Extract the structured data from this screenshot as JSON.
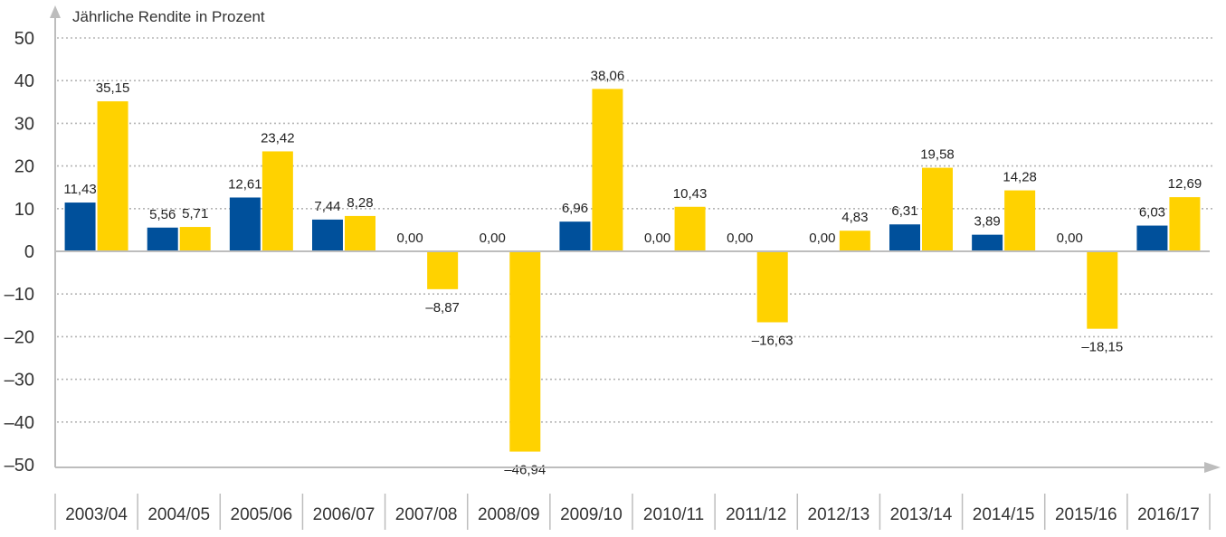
{
  "chart_data": {
    "type": "bar",
    "ylabel": "Jährliche Rendite in Prozent",
    "ylim": [
      -50,
      50
    ],
    "yticks": [
      "50",
      "40",
      "30",
      "20",
      "10",
      "0",
      "–10",
      "–20",
      "–30",
      "–40",
      "–50"
    ],
    "yticks_values": [
      50,
      40,
      30,
      20,
      10,
      0,
      -10,
      -20,
      -30,
      -40,
      -50
    ],
    "grid": true,
    "categories": [
      "2003/04",
      "2004/05",
      "2005/06",
      "2006/07",
      "2007/08",
      "2008/09",
      "2009/10",
      "2010/11",
      "2011/12",
      "2012/13",
      "2013/14",
      "2014/15",
      "2015/16",
      "2016/17"
    ],
    "series": [
      {
        "color": "#00509b",
        "values": [
          11.43,
          5.56,
          12.61,
          7.44,
          0.0,
          0.0,
          6.96,
          0.0,
          0.0,
          0.0,
          6.31,
          3.89,
          0.0,
          6.03
        ],
        "labels": [
          "11,43",
          "5,56",
          "12,61",
          "7,44",
          "0,00",
          "0,00",
          "6,96",
          "0,00",
          "0,00",
          "0,00",
          "6,31",
          "3,89",
          "0,00",
          "6,03"
        ]
      },
      {
        "color": "#ffd200",
        "values": [
          35.15,
          5.71,
          23.42,
          8.28,
          -8.87,
          -46.94,
          38.06,
          10.43,
          -16.63,
          4.83,
          19.58,
          14.28,
          -18.15,
          12.69
        ],
        "labels": [
          "35,15",
          "5,71",
          "23,42",
          "8,28",
          "–8,87",
          "–46,94",
          "38,06",
          "10,43",
          "–16,63",
          "4,83",
          "19,58",
          "14,28",
          "–18,15",
          "12,69"
        ]
      }
    ]
  }
}
